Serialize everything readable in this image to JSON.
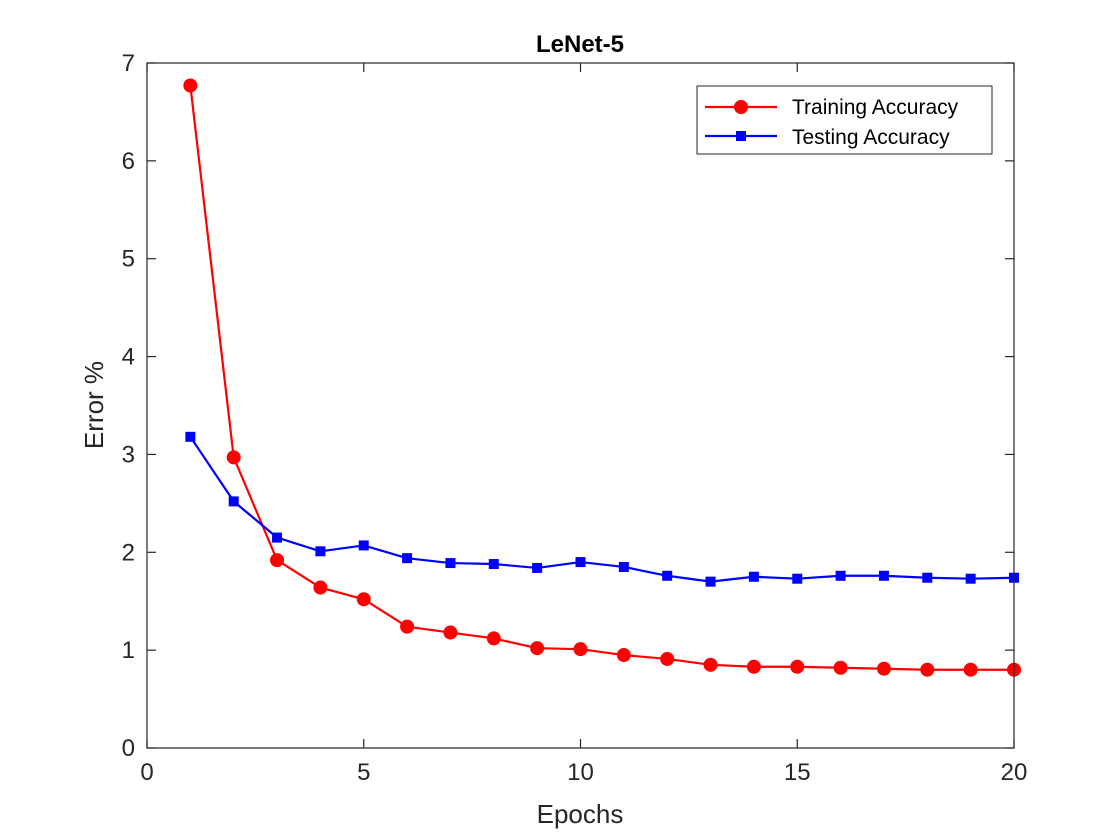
{
  "chart_data": {
    "type": "line",
    "title": "LeNet-5",
    "xlabel": "Epochs",
    "ylabel": "Error %",
    "xlim": [
      0,
      20
    ],
    "ylim": [
      0,
      7
    ],
    "xticks": [
      0,
      5,
      10,
      15,
      20
    ],
    "yticks": [
      0,
      1,
      2,
      3,
      4,
      5,
      6,
      7
    ],
    "grid": false,
    "legend_position": "top-right",
    "x": [
      1,
      2,
      3,
      4,
      5,
      6,
      7,
      8,
      9,
      10,
      11,
      12,
      13,
      14,
      15,
      16,
      17,
      18,
      19,
      20
    ],
    "series": [
      {
        "name": "Training Accuracy",
        "color": "#ff0000",
        "marker": "circle",
        "values": [
          6.77,
          2.97,
          1.92,
          1.64,
          1.52,
          1.24,
          1.18,
          1.12,
          1.02,
          1.01,
          0.95,
          0.91,
          0.85,
          0.83,
          0.83,
          0.82,
          0.81,
          0.8,
          0.8,
          0.8
        ]
      },
      {
        "name": "Testing Accuracy",
        "color": "#0000ff",
        "marker": "square",
        "values": [
          3.18,
          2.52,
          2.15,
          2.01,
          2.07,
          1.94,
          1.89,
          1.88,
          1.84,
          1.9,
          1.85,
          1.76,
          1.7,
          1.75,
          1.73,
          1.76,
          1.76,
          1.74,
          1.73,
          1.74
        ]
      }
    ]
  }
}
